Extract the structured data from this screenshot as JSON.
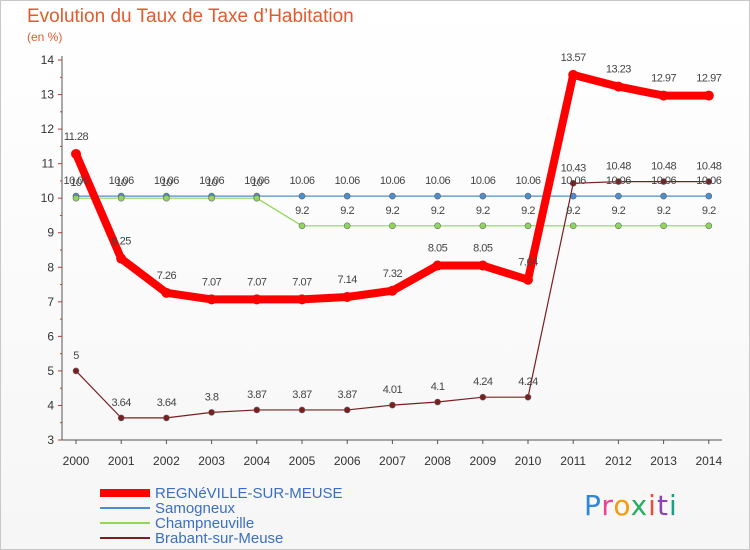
{
  "chart_data": {
    "type": "line",
    "title": "Evolution du Taux de Taxe d’Habitation",
    "subtitle": "(en %)",
    "x": [
      2000,
      2001,
      2002,
      2003,
      2004,
      2005,
      2006,
      2007,
      2008,
      2009,
      2010,
      2011,
      2012,
      2013,
      2014
    ],
    "ylim": [
      3,
      14
    ],
    "yticks": [
      3,
      4,
      5,
      6,
      7,
      8,
      9,
      10,
      11,
      12,
      13,
      14
    ],
    "grid": false,
    "legend_position": "bottom-left",
    "series": [
      {
        "name": "REGNéVILLE-SUR-MEUSE",
        "color": "#ff0000",
        "values": [
          11.28,
          8.25,
          7.26,
          7.07,
          7.07,
          7.07,
          7.14,
          7.32,
          8.05,
          8.05,
          7.64,
          13.57,
          13.23,
          12.97,
          12.97
        ],
        "labels": [
          "11.28",
          "8.25",
          "7.26",
          "7.07",
          "7.07",
          "7.07",
          "7.14",
          "7.32",
          "8.05",
          "8.05",
          "7.64",
          "13.57",
          "13.23",
          "12.97",
          "12.97"
        ]
      },
      {
        "name": "Samogneux",
        "color": "#4a8fd0",
        "values": [
          10.06,
          10.06,
          10.06,
          10.06,
          10.06,
          10.06,
          10.06,
          10.06,
          10.06,
          10.06,
          10.06,
          10.06,
          10.06,
          10.06,
          10.06
        ],
        "labels": [
          "10.06",
          "10.06",
          "10.06",
          "10.06",
          "10.06",
          "10.06",
          "10.06",
          "10.06",
          "10.06",
          "10.06",
          "10.06",
          "10.06",
          "10.06",
          "10.06",
          "10.06"
        ]
      },
      {
        "name": "Champneuville",
        "color": "#8fd65a",
        "values": [
          10,
          10,
          10,
          10,
          10,
          9.2,
          9.2,
          9.2,
          9.2,
          9.2,
          9.2,
          9.2,
          9.2,
          9.2,
          9.2
        ],
        "labels": [
          "10",
          "10",
          "10",
          "10",
          "10",
          "9.2",
          "9.2",
          "9.2",
          "9.2",
          "9.2",
          "9.2",
          "9.2",
          "9.2",
          "9.2",
          "9.2"
        ]
      },
      {
        "name": "Brabant-sur-Meuse",
        "color": "#7a1f1f",
        "values": [
          5,
          3.64,
          3.64,
          3.8,
          3.87,
          3.87,
          3.87,
          4.01,
          4.1,
          4.24,
          4.24,
          10.43,
          10.48,
          10.48,
          10.48
        ],
        "labels": [
          "5",
          "3.64",
          "3.64",
          "3.8",
          "3.87",
          "3.87",
          "3.87",
          "4.01",
          "4.1",
          "4.24",
          "4.24",
          "10.43",
          "10.48",
          "10.48",
          "10.48"
        ]
      }
    ]
  },
  "logo": {
    "text": "Proxiti",
    "colors": [
      "#2e86de",
      "#e84393",
      "#f39c12",
      "#27ae60",
      "#e74c3c",
      "#8e44ad",
      "#16a085"
    ]
  }
}
